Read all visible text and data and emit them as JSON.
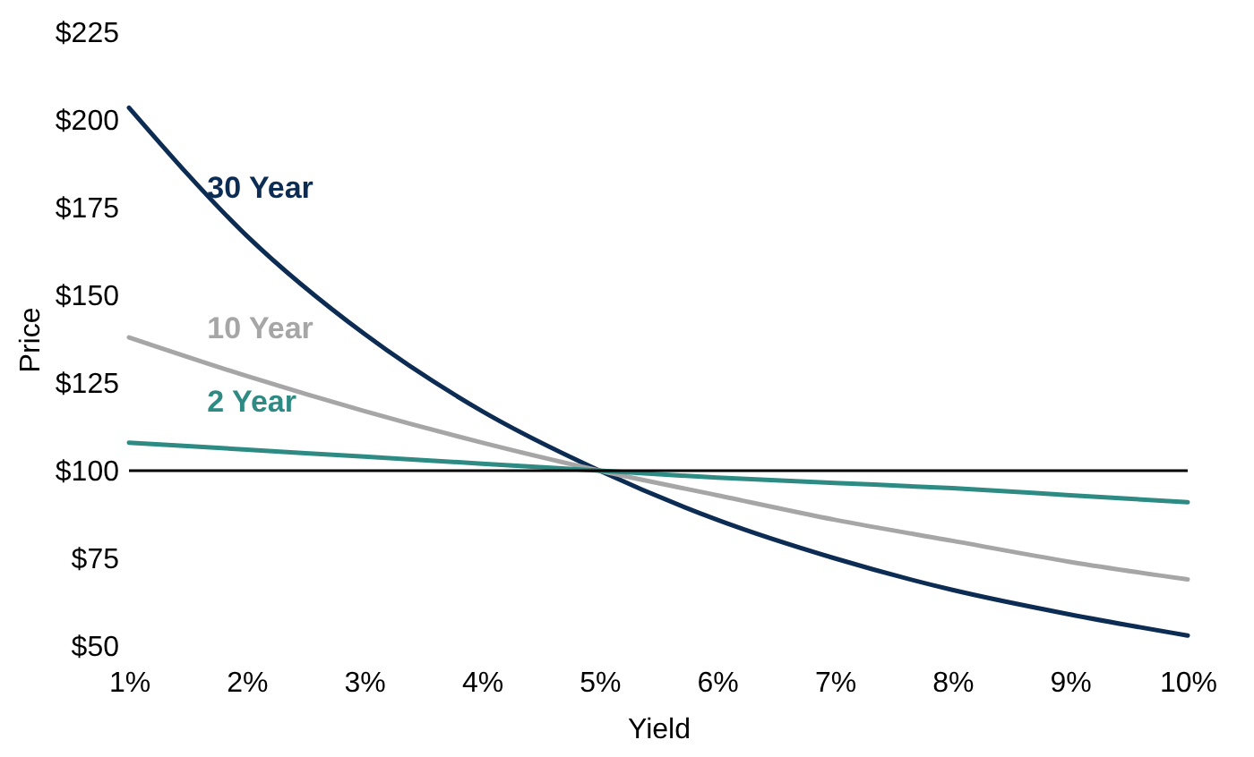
{
  "chart_data": {
    "type": "line",
    "xlabel": "Yield",
    "ylabel": "Price",
    "x": [
      1,
      2,
      3,
      4,
      5,
      6,
      7,
      8,
      9,
      10
    ],
    "series": [
      {
        "name": "30 Year",
        "color": "#0d2c54",
        "values": [
          203.5,
          167,
          139,
          117,
          100,
          86,
          75,
          66,
          59,
          53
        ]
      },
      {
        "name": "10 Year",
        "color": "#a6a6a6",
        "values": [
          138,
          127,
          117,
          108,
          100,
          93,
          86,
          80,
          74,
          69
        ]
      },
      {
        "name": "2 Year",
        "color": "#2e8b84",
        "values": [
          108,
          106,
          104,
          102,
          100,
          98,
          96.5,
          95,
          93,
          91
        ]
      }
    ],
    "xlim": [
      1,
      10
    ],
    "xticks": [
      {
        "value": 1,
        "label": "1%"
      },
      {
        "value": 2,
        "label": "2%"
      },
      {
        "value": 3,
        "label": "3%"
      },
      {
        "value": 4,
        "label": "4%"
      },
      {
        "value": 5,
        "label": "5%"
      },
      {
        "value": 6,
        "label": "6%"
      },
      {
        "value": 7,
        "label": "7%"
      },
      {
        "value": 8,
        "label": "8%"
      },
      {
        "value": 9,
        "label": "9%"
      },
      {
        "value": 10,
        "label": "10%"
      }
    ],
    "ylim": [
      50,
      225
    ],
    "yticks": [
      {
        "value": 50,
        "label": "$50"
      },
      {
        "value": 75,
        "label": "$75"
      },
      {
        "value": 100,
        "label": "$100"
      },
      {
        "value": 125,
        "label": "$125"
      },
      {
        "value": 150,
        "label": "$150"
      },
      {
        "value": 175,
        "label": "$175"
      },
      {
        "value": 200,
        "label": "$200"
      },
      {
        "value": 225,
        "label": "$225"
      }
    ],
    "ref_lines": [
      {
        "axis": "y",
        "value": 100,
        "color": "#000000"
      }
    ],
    "grid": false,
    "marker": "none",
    "line_style": "solid"
  }
}
